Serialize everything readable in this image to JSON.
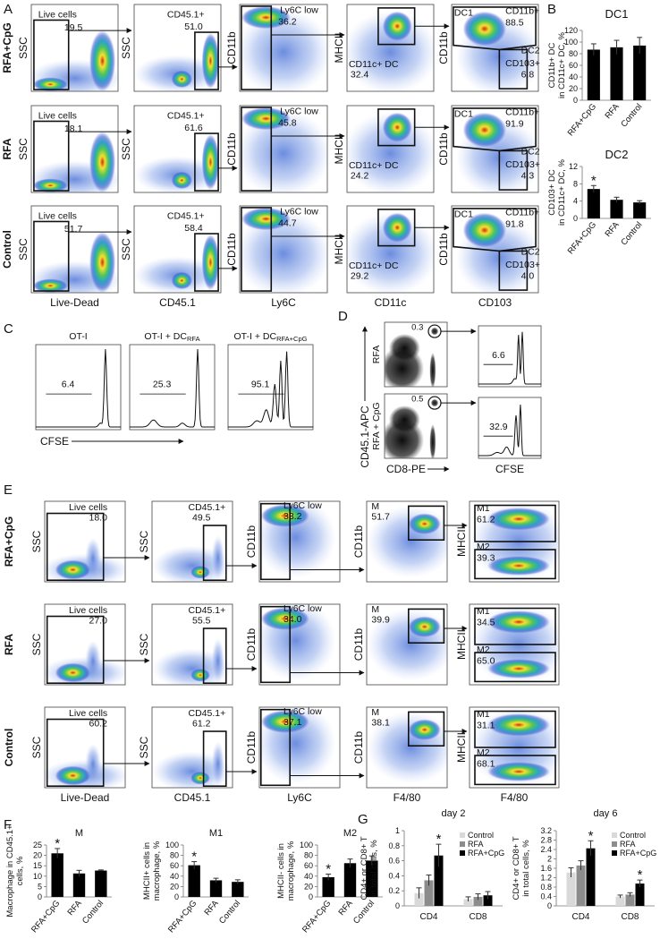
{
  "panel_a": {
    "label": "A",
    "x_labels": [
      "Live-Dead",
      "CD45.1",
      "Ly6C",
      "CD11c",
      "CD103"
    ],
    "y_labels": [
      "SSC",
      "SSC",
      "CD11b",
      "MHCII",
      "CD11b"
    ],
    "rows": [
      {
        "name": "RFA+CpG",
        "gates": [
          [
            "Live cells",
            "19.5"
          ],
          [
            "CD45.1+",
            "51.0"
          ],
          [
            "Ly6C low",
            "36.2"
          ],
          [
            "CD11c+ DC",
            "32.4"
          ],
          [
            "DC1",
            "CD11b+",
            "88.5",
            "DC2",
            "CD103+",
            "6.8"
          ]
        ]
      },
      {
        "name": "RFA",
        "gates": [
          [
            "Live cells",
            "18.1"
          ],
          [
            "CD45.1+",
            "61.6"
          ],
          [
            "Ly6C low",
            "45.8"
          ],
          [
            "CD11c+ DC",
            "24.2"
          ],
          [
            "DC1",
            "CD11b+",
            "91.9",
            "DC2",
            "CD103+",
            "4.3"
          ]
        ]
      },
      {
        "name": "Control",
        "gates": [
          [
            "Live cells",
            "51.7"
          ],
          [
            "CD45.1+",
            "58.4"
          ],
          [
            "Ly6C low",
            "44.7"
          ],
          [
            "CD11c+ DC",
            "29.2"
          ],
          [
            "DC1",
            "CD11b+",
            "91.8",
            "DC2",
            "CD103+",
            "4.0"
          ]
        ]
      }
    ]
  },
  "panel_b": {
    "label": "B"
  },
  "panel_c": {
    "label": "C",
    "x_label": "CFSE",
    "plots": [
      {
        "title": "OT-I",
        "value": "6.4"
      },
      {
        "title": "OT-I + DC",
        "subscript": "RFA",
        "value": "25.3"
      },
      {
        "title": "OT-I + DC",
        "subscript": "RFA+CpG",
        "value": "95.1"
      }
    ]
  },
  "panel_d": {
    "label": "D",
    "y_label": "CD45.1-APC",
    "x_labels": [
      "CD8-PE",
      "CFSE"
    ],
    "rows": [
      {
        "name": "RFA",
        "gate": "0.3",
        "value": "6.6"
      },
      {
        "name": "RFA + CpG",
        "gate": "0.5",
        "value": "32.9"
      }
    ]
  },
  "panel_e": {
    "label": "E",
    "x_labels": [
      "Live-Dead",
      "CD45.1",
      "Ly6C",
      "F4/80",
      "F4/80"
    ],
    "y_labels": [
      "SSC",
      "SSC",
      "CD11b",
      "CD11b",
      "MHCII"
    ],
    "rows": [
      {
        "name": "RFA+CpG",
        "gates": [
          [
            "Live cells",
            "18.0"
          ],
          [
            "CD45.1+",
            "49.5"
          ],
          [
            "Ly6C low",
            "33.2"
          ],
          [
            "M",
            "51.7"
          ],
          [
            "M1",
            "61.2",
            "M2",
            "39.3"
          ]
        ]
      },
      {
        "name": "RFA",
        "gates": [
          [
            "Live cells",
            "27.0"
          ],
          [
            "CD45.1+",
            "55.5"
          ],
          [
            "Ly6C low",
            "34.0"
          ],
          [
            "M",
            "39.9"
          ],
          [
            "M1",
            "34.5",
            "M2",
            "65.0"
          ]
        ]
      },
      {
        "name": "Control",
        "gates": [
          [
            "Live cells",
            "60.2"
          ],
          [
            "CD45.1+",
            "61.2"
          ],
          [
            "Ly6C low",
            "37.1"
          ],
          [
            "M",
            "38.1"
          ],
          [
            "M1",
            "31.1",
            "M2",
            "68.1"
          ]
        ]
      }
    ]
  },
  "panel_f": {
    "label": "F"
  },
  "panel_g": {
    "label": "G"
  },
  "chart_data": [
    {
      "type": "bar",
      "title": "DC1",
      "title_color": "#e02020",
      "ylabel": [
        "CD11b+ DC",
        "in CD11c+ DC, %"
      ],
      "categories": [
        "RFA+CpG",
        "RFA",
        "Control"
      ],
      "values": [
        87,
        91,
        94
      ],
      "errors": [
        10,
        12,
        14
      ],
      "color": "#000000",
      "ylim": [
        0,
        120
      ],
      "yticks": [
        0,
        20,
        40,
        60,
        80,
        100,
        120
      ]
    },
    {
      "type": "bar",
      "title": "DC2",
      "title_color": "#e02020",
      "ylabel": [
        "CD103+ DC",
        "in CD11c+ DC, %"
      ],
      "categories": [
        "RFA+CpG",
        "RFA",
        "Control"
      ],
      "values": [
        6.8,
        4.3,
        3.7
      ],
      "errors": [
        0.8,
        0.6,
        0.4
      ],
      "significance": [
        "*",
        null,
        null
      ],
      "color": "#000000",
      "ylim": [
        0,
        12
      ],
      "yticks": [
        0,
        4,
        8,
        12
      ]
    },
    {
      "type": "bar",
      "title": "M",
      "title_color": "#e02020",
      "ylabel": [
        "Macrophage  in CD45.1+",
        "cells, %"
      ],
      "categories": [
        "RFA+CpG",
        "RFA",
        "Control"
      ],
      "values": [
        21,
        11.3,
        12.7
      ],
      "errors": [
        2.3,
        1.5,
        0.3
      ],
      "significance": [
        "*",
        null,
        null
      ],
      "color": "#000000",
      "ylim": [
        0,
        25
      ],
      "yticks": [
        0,
        5,
        10,
        15,
        20,
        25
      ]
    },
    {
      "type": "bar",
      "title": "M1",
      "title_color": "#e02020",
      "ylabel": [
        "MHCII+ cells in",
        "macrophage, %"
      ],
      "categories": [
        "RFA+CpG",
        "RFA",
        "Control"
      ],
      "values": [
        61,
        32,
        29
      ],
      "errors": [
        7,
        4,
        4
      ],
      "significance": [
        "*",
        null,
        null
      ],
      "color": "#000000",
      "ylim": [
        0,
        100
      ],
      "yticks": [
        0,
        20,
        40,
        60,
        80,
        100
      ]
    },
    {
      "type": "bar",
      "title": "M2",
      "title_color": "#e02020",
      "ylabel": [
        "MHCII- cells in",
        "macrophage, %"
      ],
      "categories": [
        "RFA+CpG",
        "RFA",
        "Control"
      ],
      "values": [
        38,
        65,
        70
      ],
      "errors": [
        6,
        8,
        9
      ],
      "significance": [
        "*",
        null,
        null
      ],
      "color": "#000000",
      "ylim": [
        0,
        100
      ],
      "yticks": [
        0,
        20,
        40,
        60,
        80,
        100
      ]
    },
    {
      "type": "bar",
      "title": "day 2",
      "ylabel": [
        "CD4+ or CD8+  T",
        "in total cells, %"
      ],
      "legend": "upper right",
      "categories": [
        "CD4",
        "CD8"
      ],
      "series": [
        {
          "name": "Control",
          "color": "#d9d9d9",
          "values": [
            0.17,
            0.09
          ],
          "errors": [
            0.07,
            0.03
          ]
        },
        {
          "name": "RFA",
          "color": "#8c8c8c",
          "values": [
            0.34,
            0.12
          ],
          "errors": [
            0.07,
            0.04
          ]
        },
        {
          "name": "RFA+CpG",
          "color": "#000000",
          "values": [
            0.67,
            0.14
          ],
          "errors": [
            0.15,
            0.05
          ],
          "significance": [
            "*",
            null
          ]
        }
      ],
      "ylim": [
        0,
        1
      ],
      "yticks": [
        0,
        0.2,
        0.4,
        0.6,
        0.8,
        1
      ]
    },
    {
      "type": "bar",
      "title": "day 6",
      "ylabel": [
        "CD4+ or CD8+  T",
        "in total cells, %"
      ],
      "legend": "upper right",
      "categories": [
        "CD4",
        "CD8"
      ],
      "series": [
        {
          "name": "Control",
          "color": "#d9d9d9",
          "values": [
            1.42,
            0.4
          ],
          "errors": [
            0.2,
            0.06
          ]
        },
        {
          "name": "RFA",
          "color": "#8c8c8c",
          "values": [
            1.72,
            0.48
          ],
          "errors": [
            0.2,
            0.08
          ]
        },
        {
          "name": "RFA+CpG",
          "color": "#000000",
          "values": [
            2.45,
            0.95
          ],
          "errors": [
            0.32,
            0.15
          ],
          "significance": [
            "*",
            "*"
          ]
        }
      ],
      "ylim": [
        0,
        3.2
      ],
      "yticks": [
        0,
        0.4,
        0.8,
        1.2,
        1.6,
        2,
        2.4,
        2.8,
        3.2
      ]
    }
  ]
}
